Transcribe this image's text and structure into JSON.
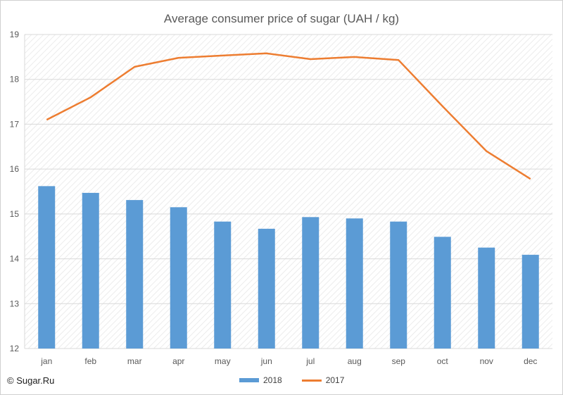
{
  "chart_data": {
    "type": "bar",
    "title": "Average consumer price of sugar (UAH / kg)",
    "xlabel": "",
    "ylabel": "",
    "categories": [
      "jan",
      "feb",
      "mar",
      "apr",
      "may",
      "jun",
      "jul",
      "aug",
      "sep",
      "oct",
      "nov",
      "dec"
    ],
    "ylim": [
      12,
      19
    ],
    "yticks": [
      12,
      13,
      14,
      15,
      16,
      17,
      18,
      19
    ],
    "grid": true,
    "legend_position": "bottom",
    "series": [
      {
        "name": "2018",
        "kind": "bar",
        "color": "#5b9bd5",
        "values": [
          15.62,
          15.47,
          15.31,
          15.15,
          14.83,
          14.67,
          14.93,
          14.9,
          14.83,
          14.49,
          14.25,
          14.09
        ]
      },
      {
        "name": "2017",
        "kind": "line",
        "color": "#ed7d31",
        "values": [
          17.1,
          17.6,
          18.28,
          18.48,
          18.53,
          18.58,
          18.45,
          18.5,
          18.43,
          17.4,
          16.4,
          15.78
        ]
      }
    ]
  },
  "credit": "© Sugar.Ru"
}
